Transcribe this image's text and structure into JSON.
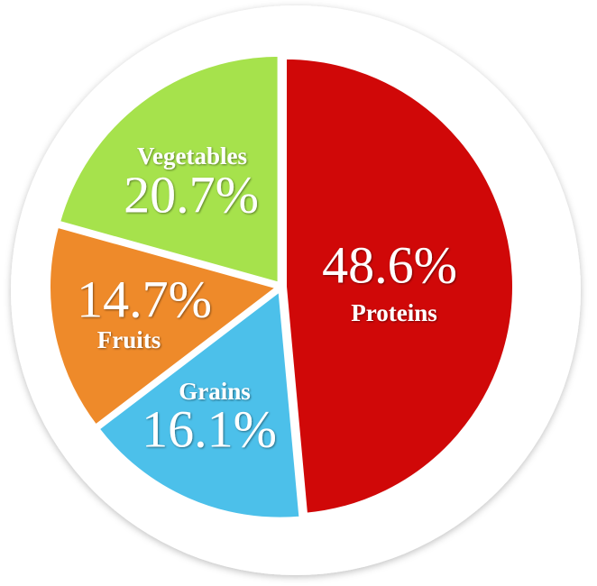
{
  "chart_data": {
    "type": "pie",
    "categories": [
      "Proteins",
      "Grains",
      "Fruits",
      "Vegetables"
    ],
    "values": [
      48.6,
      16.1,
      14.7,
      20.7
    ],
    "value_labels": [
      "48.6%",
      "16.1%",
      "14.7%",
      "20.7%"
    ],
    "colors": [
      "#d00808",
      "#4cc0ea",
      "#ee8a2a",
      "#a6e24c"
    ]
  }
}
